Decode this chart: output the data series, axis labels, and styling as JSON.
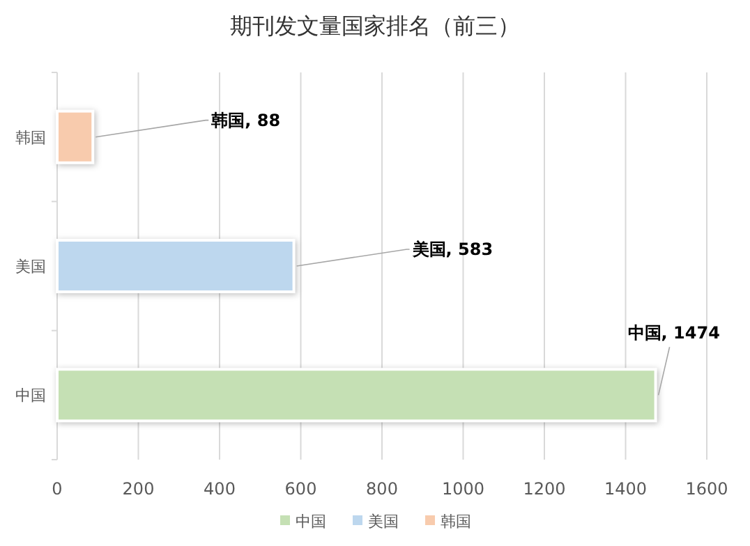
{
  "chart_data": {
    "type": "bar",
    "orientation": "horizontal",
    "title": "期刊发文量国家排名（前三）",
    "categories": [
      "韩国",
      "美国",
      "中国"
    ],
    "series": [
      {
        "name": "中国",
        "color": "#c5e0b4",
        "values": [
          null,
          null,
          1474
        ],
        "value_labels": [
          null,
          null,
          "中国, 1474"
        ]
      },
      {
        "name": "美国",
        "color": "#bdd7ee",
        "values": [
          null,
          583,
          null
        ],
        "value_labels": [
          null,
          "美国, 583",
          null
        ]
      },
      {
        "name": "韩国",
        "color": "#f8cbad",
        "values": [
          88,
          null,
          null
        ],
        "value_labels": [
          "韩国, 88",
          null,
          null
        ]
      }
    ],
    "xlim": [
      0,
      1600
    ],
    "xticks": [
      0,
      200,
      400,
      600,
      800,
      1000,
      1200,
      1400,
      1600
    ],
    "grid": "x",
    "legend": "bottom"
  }
}
